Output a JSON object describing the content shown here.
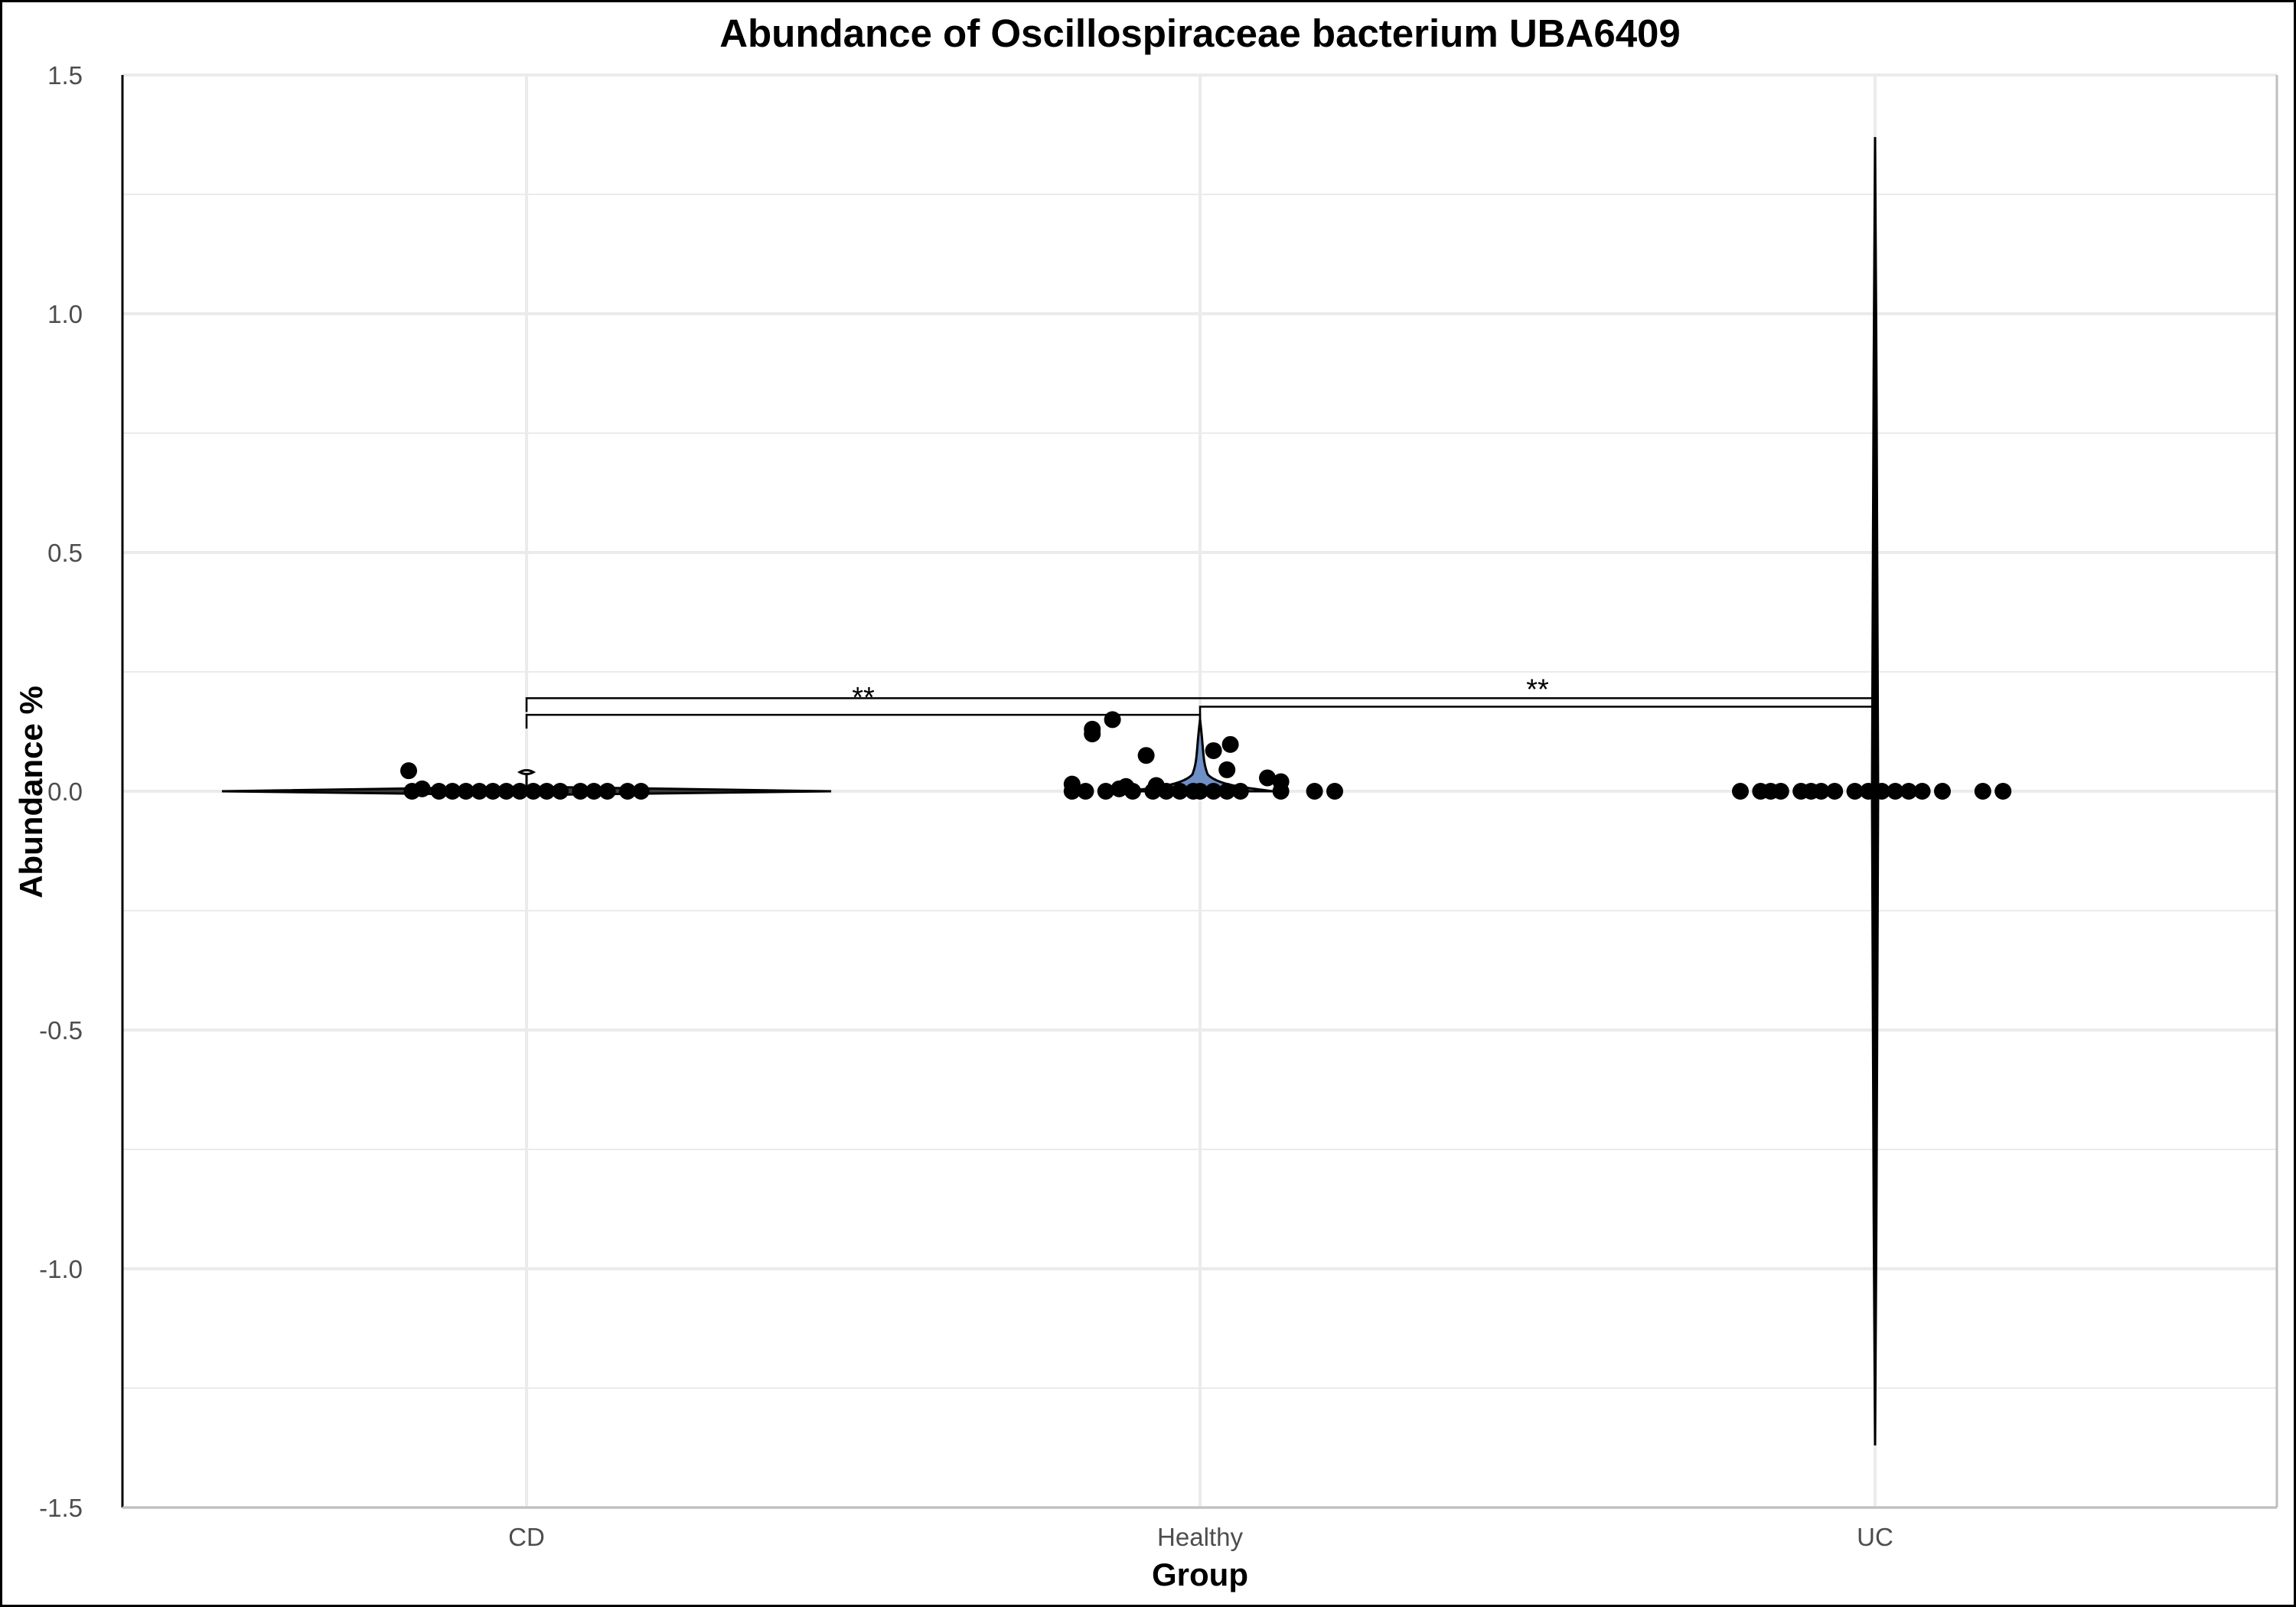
{
  "chart_data": {
    "type": "violin",
    "title": "Abundance of Oscillospiraceae bacterium UBA6409",
    "xlabel": "Group",
    "ylabel": "Abundance %",
    "categories": [
      "CD",
      "Healthy",
      "UC"
    ],
    "ylim": [
      -1.5,
      1.5
    ],
    "yticks": [
      -1.5,
      -1.0,
      -0.5,
      0.0,
      0.5,
      1.0,
      1.5
    ],
    "ytick_labels": [
      "-1.5",
      "-1.0",
      "-0.5",
      "0.0",
      "0.5",
      "1.0",
      "1.5"
    ],
    "grid": true,
    "colors": {
      "points": "#000000",
      "violin_stroke": "#000000",
      "healthy_violin_fill": "#6f8fc7",
      "grid": "#ebebeb",
      "tick_text": "#4d4d4d"
    },
    "series": [
      {
        "category": "CD",
        "violin_range": [
          0.0,
          0.04
        ],
        "points": [
          {
            "dx": -0.17,
            "y": 0.0
          },
          {
            "dx": -0.175,
            "y": 0.043
          },
          {
            "dx": -0.155,
            "y": 0.005
          },
          {
            "dx": -0.13,
            "y": 0.0
          },
          {
            "dx": -0.11,
            "y": 0.0
          },
          {
            "dx": -0.09,
            "y": 0.0
          },
          {
            "dx": -0.07,
            "y": 0.0
          },
          {
            "dx": -0.05,
            "y": 0.0
          },
          {
            "dx": -0.03,
            "y": 0.0
          },
          {
            "dx": -0.01,
            "y": 0.0
          },
          {
            "dx": 0.01,
            "y": 0.0
          },
          {
            "dx": 0.03,
            "y": 0.0
          },
          {
            "dx": 0.05,
            "y": 0.0
          },
          {
            "dx": 0.08,
            "y": 0.0
          },
          {
            "dx": 0.1,
            "y": 0.0
          },
          {
            "dx": 0.12,
            "y": 0.0
          },
          {
            "dx": 0.15,
            "y": 0.0
          },
          {
            "dx": 0.17,
            "y": 0.0
          }
        ]
      },
      {
        "category": "Healthy",
        "violin_range": [
          0.0,
          0.15
        ],
        "points": [
          {
            "dx": -0.19,
            "y": 0.0
          },
          {
            "dx": -0.19,
            "y": 0.015
          },
          {
            "dx": -0.17,
            "y": 0.0
          },
          {
            "dx": -0.16,
            "y": 0.13
          },
          {
            "dx": -0.16,
            "y": 0.12
          },
          {
            "dx": -0.13,
            "y": 0.15
          },
          {
            "dx": -0.14,
            "y": 0.0
          },
          {
            "dx": -0.12,
            "y": 0.005
          },
          {
            "dx": -0.11,
            "y": 0.01
          },
          {
            "dx": -0.1,
            "y": 0.0
          },
          {
            "dx": -0.08,
            "y": 0.075
          },
          {
            "dx": -0.07,
            "y": 0.0
          },
          {
            "dx": -0.065,
            "y": 0.012
          },
          {
            "dx": -0.05,
            "y": 0.0
          },
          {
            "dx": -0.03,
            "y": 0.0
          },
          {
            "dx": -0.01,
            "y": 0.0
          },
          {
            "dx": 0.0,
            "y": 0.0
          },
          {
            "dx": 0.02,
            "y": 0.0
          },
          {
            "dx": 0.02,
            "y": 0.085
          },
          {
            "dx": 0.045,
            "y": 0.098
          },
          {
            "dx": 0.04,
            "y": 0.045
          },
          {
            "dx": 0.04,
            "y": 0.0
          },
          {
            "dx": 0.06,
            "y": 0.0
          },
          {
            "dx": 0.1,
            "y": 0.028
          },
          {
            "dx": 0.12,
            "y": 0.02
          },
          {
            "dx": 0.12,
            "y": 0.0
          },
          {
            "dx": 0.17,
            "y": 0.0
          },
          {
            "dx": 0.2,
            "y": 0.0
          }
        ]
      },
      {
        "category": "UC",
        "violin_range": [
          -1.37,
          1.37
        ],
        "points": [
          {
            "dx": -0.2,
            "y": 0.0
          },
          {
            "dx": -0.17,
            "y": 0.0
          },
          {
            "dx": -0.155,
            "y": 0.0
          },
          {
            "dx": -0.14,
            "y": 0.0
          },
          {
            "dx": -0.11,
            "y": 0.0
          },
          {
            "dx": -0.095,
            "y": 0.0
          },
          {
            "dx": -0.08,
            "y": 0.0
          },
          {
            "dx": -0.06,
            "y": 0.0
          },
          {
            "dx": -0.03,
            "y": 0.0
          },
          {
            "dx": -0.01,
            "y": 0.0
          },
          {
            "dx": 0.01,
            "y": 0.0
          },
          {
            "dx": 0.03,
            "y": 0.0
          },
          {
            "dx": 0.05,
            "y": 0.0
          },
          {
            "dx": 0.07,
            "y": 0.0
          },
          {
            "dx": 0.1,
            "y": 0.0
          },
          {
            "dx": 0.16,
            "y": 0.0
          },
          {
            "dx": 0.19,
            "y": 0.0
          }
        ]
      }
    ],
    "significance": [
      {
        "from": "CD",
        "to": "Healthy",
        "y": 0.16,
        "label": "**"
      },
      {
        "from": "CD",
        "to": "UC",
        "y": 0.195,
        "label": ""
      },
      {
        "from": "Healthy",
        "to": "UC",
        "y": 0.177,
        "label": "**"
      }
    ]
  }
}
